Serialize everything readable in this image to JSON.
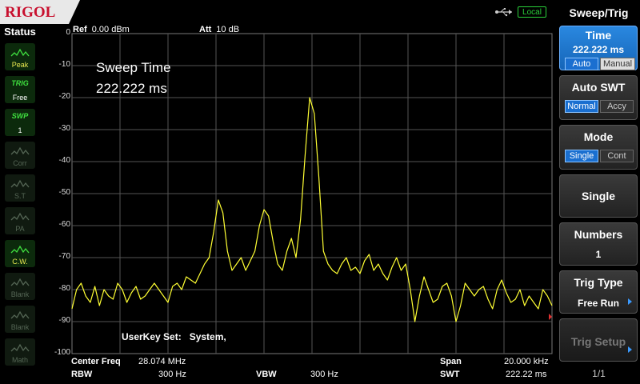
{
  "brand": "RIGOL",
  "local_label": "Local",
  "status": {
    "title": "Status",
    "items": [
      {
        "top": "",
        "label": "Peak",
        "icon": "peak-icon",
        "dim": false
      },
      {
        "top": "TRIG",
        "label": "Free",
        "icon": "",
        "dim": false
      },
      {
        "top": "SWP",
        "label": "1",
        "icon": "",
        "dim": false
      },
      {
        "top": "",
        "label": "Corr",
        "icon": "corr-icon",
        "dim": true
      },
      {
        "top": "",
        "label": "S.T",
        "icon": "st-icon",
        "dim": true
      },
      {
        "top": "",
        "label": "PA",
        "icon": "pa-icon",
        "dim": true
      },
      {
        "top": "",
        "label": "C.W.",
        "icon": "cw-icon",
        "dim": false
      },
      {
        "top": "",
        "label": "Blank",
        "icon": "blank-icon",
        "dim": true
      },
      {
        "top": "",
        "label": "Blank",
        "icon": "blank-icon",
        "dim": true
      },
      {
        "top": "",
        "label": "Math",
        "icon": "math-icon",
        "dim": true
      }
    ]
  },
  "header": {
    "ref_label": "Ref",
    "ref_value": "0.00 dBm",
    "att_label": "Att",
    "att_value": "10 dB"
  },
  "annotation": {
    "line1": "Sweep Time",
    "line2": "222.222 ms"
  },
  "userkey": {
    "label": "UserKey Set:",
    "value": "System,"
  },
  "footer": {
    "center_label": "Center Freq",
    "center_value": "28.074 MHz",
    "span_label": "Span",
    "span_value": "20.000 kHz",
    "rbw_label": "RBW",
    "rbw_value": "300 Hz",
    "vbw_label": "VBW",
    "vbw_value": "300 Hz",
    "swt_label": "SWT",
    "swt_value": "222.22 ms"
  },
  "chart_data": {
    "type": "line",
    "ylabels": [
      "0",
      "-10",
      "-20",
      "-30",
      "-40",
      "-50",
      "-60",
      "-70",
      "-80",
      "-90",
      "-100"
    ],
    "ylim": [
      -100,
      0
    ],
    "trace_color": "#ffff33",
    "grid": true,
    "series": [
      {
        "values": [
          -86,
          -80,
          -78,
          -82,
          -84,
          -79,
          -85,
          -80,
          -82,
          -83,
          -78,
          -80,
          -84,
          -81,
          -79,
          -83,
          -82,
          -80,
          -78,
          -80,
          -82,
          -84,
          -79,
          -78,
          -80,
          -76,
          -77,
          -78,
          -75,
          -72,
          -70,
          -62,
          -52,
          -56,
          -68,
          -74,
          -72,
          -70,
          -74,
          -71,
          -68,
          -60,
          -55,
          -57,
          -65,
          -72,
          -74,
          -68,
          -64,
          -70,
          -58,
          -38,
          -20,
          -25,
          -45,
          -68,
          -72,
          -74,
          -75,
          -72,
          -70,
          -74,
          -73,
          -75,
          -71,
          -69,
          -74,
          -72,
          -75,
          -77,
          -73,
          -70,
          -74,
          -72,
          -80,
          -90,
          -82,
          -76,
          -80,
          -84,
          -83,
          -79,
          -78,
          -82,
          -90,
          -85,
          -78,
          -80,
          -82,
          -80,
          -79,
          -83,
          -86,
          -80,
          -77,
          -81,
          -84,
          -83,
          -80,
          -85,
          -82,
          -84,
          -86,
          -80,
          -82,
          -85
        ]
      }
    ]
  },
  "menu": {
    "title": "Sweep/Trig",
    "time": {
      "label": "Time",
      "value": "222.222 ms",
      "opt_a": "Auto",
      "opt_b": "Manual"
    },
    "auto_swt": {
      "label": "Auto SWT",
      "opt_a": "Normal",
      "opt_b": "Accy"
    },
    "mode": {
      "label": "Mode",
      "opt_a": "Single",
      "opt_b": "Cont"
    },
    "single": {
      "label": "Single"
    },
    "numbers": {
      "label": "Numbers",
      "value": "1"
    },
    "trig_type": {
      "label": "Trig Type",
      "value": "Free Run"
    },
    "trig_setup": {
      "label": "Trig Setup"
    },
    "page": "1/1"
  }
}
